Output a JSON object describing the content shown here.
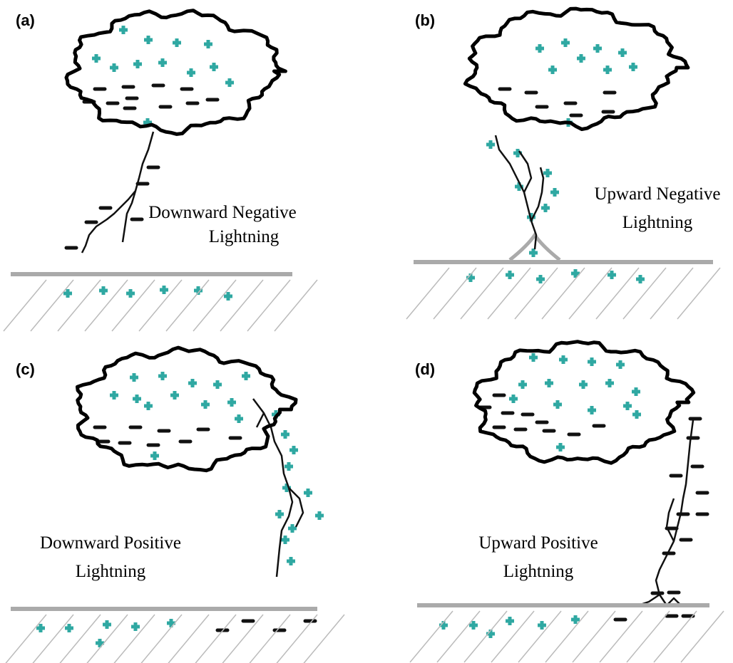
{
  "panels": [
    {
      "label": "(a)",
      "caption": [
        "Downward Negative",
        "Lightning"
      ]
    },
    {
      "label": "(b)",
      "caption": [
        "Upward Negative",
        "Lightning"
      ]
    },
    {
      "label": "(c)",
      "caption": [
        "Downward Positive",
        "Lightning"
      ]
    },
    {
      "label": "(d)",
      "caption": [
        "Upward Positive",
        "Lightning"
      ]
    }
  ]
}
